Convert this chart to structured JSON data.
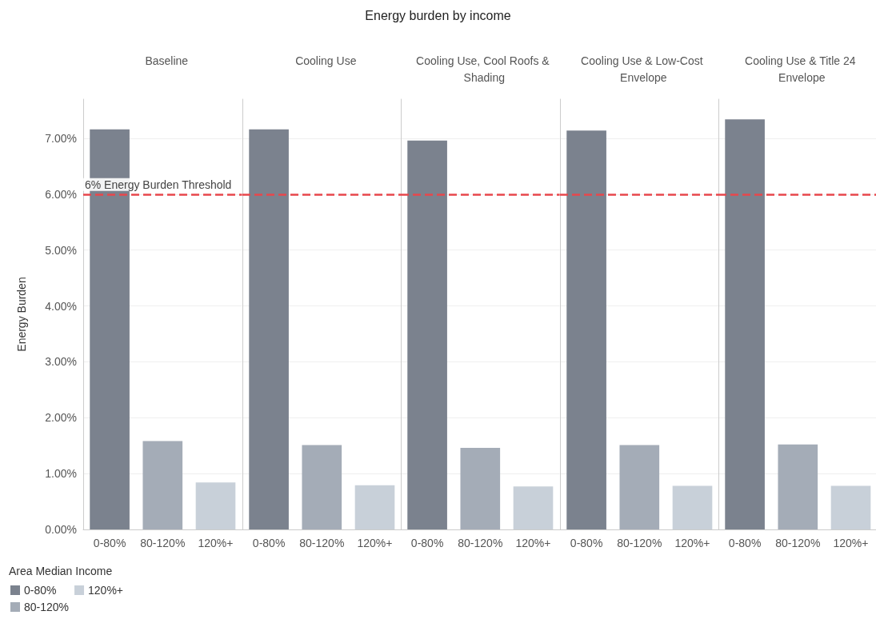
{
  "chart_data": [
    {
      "type": "bar",
      "annotations": [
        "Energy burden by income"
      ],
      "subtitle": "Baseline",
      "ylabel": "Energy Burden",
      "legend_title": "Area Median Income",
      "legend": "bottom left",
      "grid": "y",
      "categories": [
        "0-80%",
        "80-120%",
        "120%+"
      ],
      "series": [
        {
          "name": "0-80%",
          "color": "#7b828e",
          "values": [
            7.16,
            null,
            null
          ]
        },
        {
          "name": "80-120%",
          "color": "#a4acb7",
          "values": [
            null,
            1.58,
            null
          ]
        },
        {
          "name": "120%+",
          "color": "#c8d0d9",
          "values": [
            null,
            null,
            0.84
          ]
        }
      ],
      "ylim": [
        0,
        7.7
      ],
      "yticks": [
        {
          "value": 0,
          "label": "0.00%"
        },
        {
          "value": 1,
          "label": "1.00%"
        },
        {
          "value": 2,
          "label": "2.00%"
        },
        {
          "value": 3,
          "label": "3.00%"
        },
        {
          "value": 4,
          "label": "4.00%"
        },
        {
          "value": 5,
          "label": "5.00%"
        },
        {
          "value": 6,
          "label": "6.00%"
        },
        {
          "value": 7,
          "label": "7.00%"
        }
      ],
      "ref_lines": [
        {
          "axis": "y",
          "value": 6,
          "label": "6% Energy Burden Threshold",
          "color": "#e8474c",
          "line_style": "dashed"
        }
      ]
    },
    {
      "type": "bar",
      "subtitle": "Cooling Use",
      "grid": "y",
      "tick_labels": "x",
      "categories": [
        "0-80%",
        "80-120%",
        "120%+"
      ],
      "series": [
        {
          "color": "#7b828e",
          "values": [
            7.16,
            null,
            null
          ]
        },
        {
          "color": "#a4acb7",
          "values": [
            null,
            1.51,
            null
          ]
        },
        {
          "color": "#c8d0d9",
          "values": [
            null,
            null,
            0.79
          ]
        }
      ],
      "ylim": [
        0,
        7.7
      ],
      "yticks": [
        {
          "value": 0,
          "label": null
        },
        {
          "value": 1,
          "label": null
        },
        {
          "value": 2,
          "label": null
        },
        {
          "value": 3,
          "label": null
        },
        {
          "value": 4,
          "label": null
        },
        {
          "value": 5,
          "label": null
        },
        {
          "value": 6,
          "label": null
        },
        {
          "value": 7,
          "label": null
        }
      ],
      "ref_lines": [
        {
          "axis": "y",
          "value": 6,
          "color": "#e8474c",
          "line_style": "dashed"
        }
      ]
    },
    {
      "type": "bar",
      "subtitle": "Cooling Use, Cool Roofs & Shading",
      "grid": "y",
      "tick_labels": "x",
      "categories": [
        "0-80%",
        "80-120%",
        "120%+"
      ],
      "series": [
        {
          "color": "#7b828e",
          "values": [
            6.96,
            null,
            null
          ]
        },
        {
          "color": "#a4acb7",
          "values": [
            null,
            1.46,
            null
          ]
        },
        {
          "color": "#c8d0d9",
          "values": [
            null,
            null,
            0.77
          ]
        }
      ],
      "ylim": [
        0,
        7.7
      ],
      "yticks": [
        {
          "value": 0,
          "label": null
        },
        {
          "value": 1,
          "label": null
        },
        {
          "value": 2,
          "label": null
        },
        {
          "value": 3,
          "label": null
        },
        {
          "value": 4,
          "label": null
        },
        {
          "value": 5,
          "label": null
        },
        {
          "value": 6,
          "label": null
        },
        {
          "value": 7,
          "label": null
        }
      ],
      "ref_lines": [
        {
          "axis": "y",
          "value": 6,
          "color": "#e8474c",
          "line_style": "dashed"
        }
      ]
    },
    {
      "type": "bar",
      "subtitle": "Cooling Use & Low-Cost Envelope",
      "grid": "y",
      "tick_labels": "x",
      "categories": [
        "0-80%",
        "80-120%",
        "120%+"
      ],
      "series": [
        {
          "color": "#7b828e",
          "values": [
            7.14,
            null,
            null
          ]
        },
        {
          "color": "#a4acb7",
          "values": [
            null,
            1.51,
            null
          ]
        },
        {
          "color": "#c8d0d9",
          "values": [
            null,
            null,
            0.78
          ]
        }
      ],
      "ylim": [
        0,
        7.7
      ],
      "yticks": [
        {
          "value": 0,
          "label": null
        },
        {
          "value": 1,
          "label": null
        },
        {
          "value": 2,
          "label": null
        },
        {
          "value": 3,
          "label": null
        },
        {
          "value": 4,
          "label": null
        },
        {
          "value": 5,
          "label": null
        },
        {
          "value": 6,
          "label": null
        },
        {
          "value": 7,
          "label": null
        }
      ],
      "ref_lines": [
        {
          "axis": "y",
          "value": 6,
          "color": "#e8474c",
          "line_style": "dashed"
        }
      ]
    },
    {
      "type": "bar",
      "subtitle": "Cooling Use & Title 24 Envelope",
      "grid": "y",
      "tick_labels": "x",
      "categories": [
        "0-80%",
        "80-120%",
        "120%+"
      ],
      "series": [
        {
          "color": "#7b828e",
          "values": [
            7.34,
            null,
            null
          ]
        },
        {
          "color": "#a4acb7",
          "values": [
            null,
            1.52,
            null
          ]
        },
        {
          "color": "#c8d0d9",
          "values": [
            null,
            null,
            0.78
          ]
        }
      ],
      "ylim": [
        0,
        7.7
      ],
      "yticks": [
        {
          "value": 0,
          "label": null
        },
        {
          "value": 1,
          "label": null
        },
        {
          "value": 2,
          "label": null
        },
        {
          "value": 3,
          "label": null
        },
        {
          "value": 4,
          "label": null
        },
        {
          "value": 5,
          "label": null
        },
        {
          "value": 6,
          "label": null
        },
        {
          "value": 7,
          "label": null
        }
      ],
      "ref_lines": [
        {
          "axis": "y",
          "value": 6,
          "color": "#e8474c",
          "line_style": "dashed"
        }
      ]
    }
  ]
}
